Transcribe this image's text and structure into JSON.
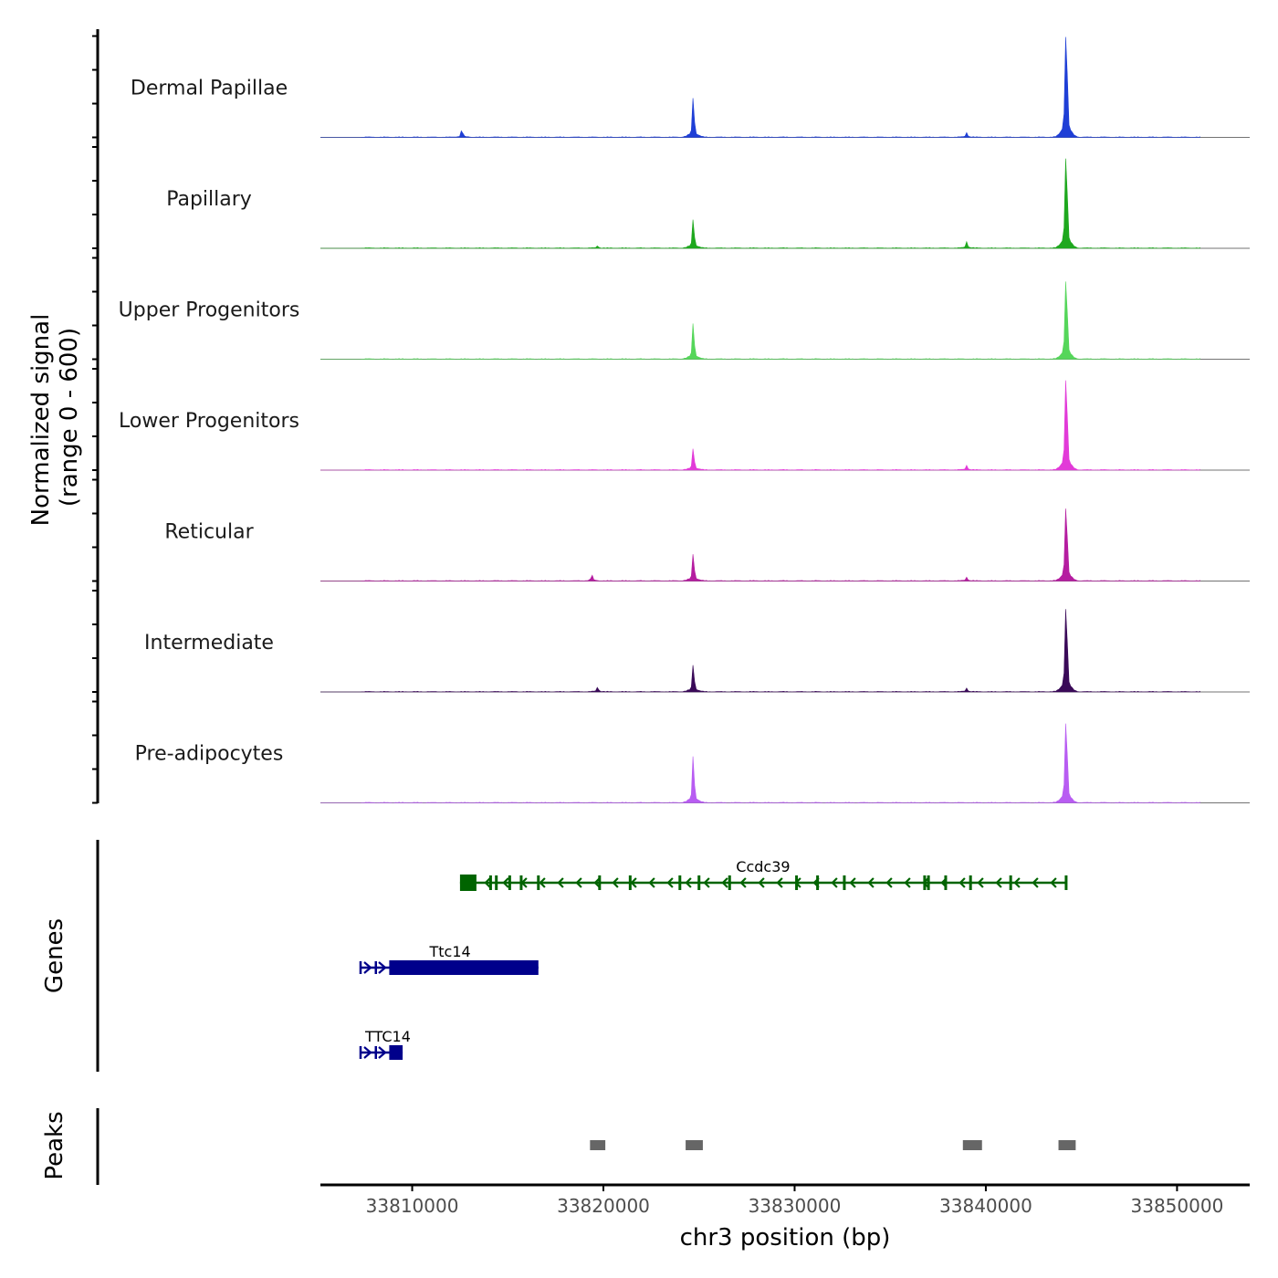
{
  "chart_data": {
    "type": "area",
    "title": "",
    "chromosome": "chr3",
    "xlabel": "chr3 position (bp)",
    "ylabel_line1": "Normalized signal",
    "ylabel_line2": "(range 0 - 600)",
    "xlim": [
      33805200,
      33853800
    ],
    "x_ticks": [
      33810000,
      33820000,
      33830000,
      33840000,
      33850000
    ],
    "x_tick_labels": [
      "33810000",
      "33820000",
      "33830000",
      "33840000",
      "33850000"
    ],
    "y_range": [
      0,
      600
    ],
    "tracks": [
      {
        "name": "Dermal Papillae",
        "color": "#1f3fd6",
        "peaks": [
          [
            33812600,
            40
          ],
          [
            33824700,
            220
          ],
          [
            33839000,
            25
          ],
          [
            33844200,
            600
          ]
        ]
      },
      {
        "name": "Papillary",
        "color": "#1ea81e",
        "peaks": [
          [
            33819700,
            12
          ],
          [
            33824700,
            160
          ],
          [
            33839000,
            35
          ],
          [
            33844200,
            520
          ]
        ]
      },
      {
        "name": "Upper Progenitors",
        "color": "#55d65a",
        "peaks": [
          [
            33824700,
            200
          ],
          [
            33844200,
            450
          ]
        ]
      },
      {
        "name": "Lower Progenitors",
        "color": "#e23ad8",
        "peaks": [
          [
            33824700,
            120
          ],
          [
            33839000,
            25
          ],
          [
            33844200,
            520
          ]
        ]
      },
      {
        "name": "Reticular",
        "color": "#b51da0",
        "peaks": [
          [
            33819400,
            30
          ],
          [
            33824700,
            150
          ],
          [
            33839000,
            20
          ],
          [
            33844200,
            420
          ]
        ]
      },
      {
        "name": "Intermediate",
        "color": "#3a0a58",
        "peaks": [
          [
            33819700,
            25
          ],
          [
            33824700,
            150
          ],
          [
            33839000,
            20
          ],
          [
            33844200,
            480
          ]
        ]
      },
      {
        "name": "Pre-adipocytes",
        "color": "#b85cf2",
        "peaks": [
          [
            33824700,
            260
          ],
          [
            33844200,
            460
          ]
        ]
      }
    ],
    "genes_label": "Genes",
    "genes": [
      {
        "name": "Ccdc39",
        "strand": "-",
        "color": "#006400",
        "start": 33812500,
        "end": 33844200,
        "exons": [
          33812700,
          33814100,
          33814400,
          33815100,
          33815700,
          33816600,
          33819800,
          33821400,
          33824000,
          33825000,
          33826600,
          33830100,
          33831200,
          33832600,
          33836800,
          33837000,
          33837900,
          33839200,
          33841300,
          33844200
        ]
      },
      {
        "name": "Ttc14",
        "strand": "+",
        "color": "#00008b",
        "start": 33807300,
        "end": 33816600,
        "exons": [
          33807300,
          33808100
        ]
      },
      {
        "name": "TTC14",
        "strand": "+",
        "color": "#00008b",
        "start": 33807300,
        "end": 33809500,
        "exons": [
          33807300,
          33808100
        ]
      }
    ],
    "peaks_label": "Peaks",
    "peak_regions": [
      [
        33819300,
        33820100
      ],
      [
        33824300,
        33825200
      ],
      [
        33838800,
        33839800
      ],
      [
        33843800,
        33844700
      ]
    ]
  }
}
